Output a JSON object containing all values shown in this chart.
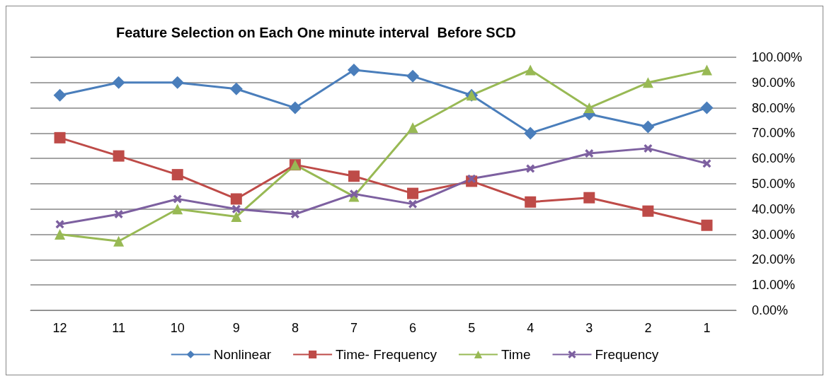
{
  "chart_data": {
    "type": "line",
    "title": "Feature Selection on Each One minute interval  Before SCD",
    "categories": [
      "12",
      "11",
      "10",
      "9",
      "8",
      "7",
      "6",
      "5",
      "4",
      "3",
      "2",
      "1"
    ],
    "series": [
      {
        "name": "Nonlinear",
        "color": "#4a7ebb",
        "marker": "diamond",
        "values": [
          85,
          90,
          90,
          87.5,
          80,
          95,
          92.5,
          85,
          70,
          77.5,
          72.5,
          80
        ]
      },
      {
        "name": "Time- Frequency",
        "color": "#be4b48",
        "marker": "square",
        "values": [
          68.2,
          61,
          53.6,
          44,
          57.5,
          53,
          46.2,
          51,
          42.8,
          44.5,
          39.2,
          33.6
        ]
      },
      {
        "name": "Time",
        "color": "#98b954",
        "marker": "triangle",
        "values": [
          30,
          27.3,
          40,
          37,
          57.5,
          45,
          72.2,
          85,
          95,
          80,
          90,
          95
        ]
      },
      {
        "name": "Frequency",
        "color": "#7d60a0",
        "marker": "cross",
        "values": [
          34,
          38,
          44,
          40,
          38,
          46,
          42,
          52,
          56,
          62,
          64,
          58
        ]
      }
    ],
    "ylim": [
      0,
      100
    ],
    "yticks": [
      {
        "value": 0,
        "label": "0.00%"
      },
      {
        "value": 10,
        "label": "10.00%"
      },
      {
        "value": 20,
        "label": "20.00%"
      },
      {
        "value": 30,
        "label": "30.00%"
      },
      {
        "value": 40,
        "label": "40.00%"
      },
      {
        "value": 50,
        "label": "50.00%"
      },
      {
        "value": 60,
        "label": "60.00%"
      },
      {
        "value": 70,
        "label": "70.00%"
      },
      {
        "value": 80,
        "label": "80.00%"
      },
      {
        "value": 90,
        "label": "90.00%"
      },
      {
        "value": 100,
        "label": "100.00%"
      }
    ],
    "grid": "y",
    "legend": "bottom",
    "line_style": "solid"
  }
}
